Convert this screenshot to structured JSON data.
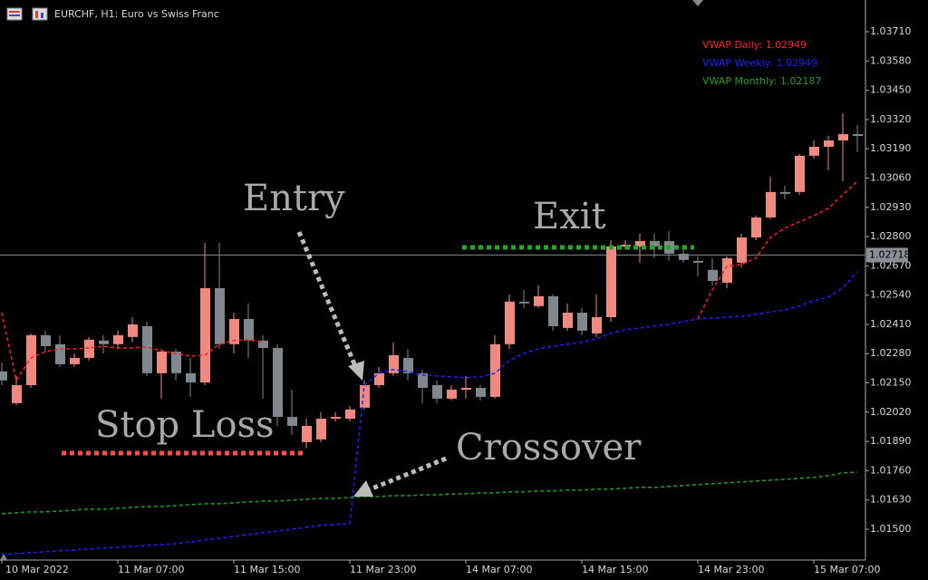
{
  "chart_data": {
    "type": "candlestick",
    "title": "EURCHF, H1:  Euro vs Swiss Franc",
    "annotations": [
      "Entry",
      "Exit",
      "Stop Loss",
      "Crossover"
    ],
    "categories": [
      "10 Mar 2022",
      null,
      null,
      null,
      null,
      null,
      null,
      null,
      "11 Mar 07:00",
      null,
      null,
      null,
      null,
      null,
      null,
      null,
      "11 Mar 15:00",
      null,
      null,
      null,
      null,
      null,
      null,
      null,
      "11 Mar 23:00",
      null,
      null,
      null,
      null,
      null,
      null,
      null,
      "14 Mar 07:00",
      null,
      null,
      null,
      null,
      null,
      null,
      null,
      "14 Mar 15:00",
      null,
      null,
      null,
      null,
      null,
      null,
      null,
      "14 Mar 23:00",
      null,
      null,
      null,
      null,
      null,
      null,
      null,
      "15 Mar 07:00",
      null,
      null,
      null
    ],
    "open": [
      1.02201,
      1.0206,
      1.0214,
      1.02362,
      1.02322,
      1.02233,
      1.02261,
      1.02338,
      1.02322,
      1.02354,
      1.02402,
      1.02193,
      1.02289,
      1.02193,
      1.02152,
      1.02571,
      1.02322,
      1.02434,
      1.02338,
      1.02305,
      1.01999,
      1.01887,
      1.01899,
      1.01991,
      1.01991,
      1.0204,
      1.0214,
      1.02193,
      1.02261,
      1.02193,
      1.0214,
      1.0208,
      1.0212,
      1.02128,
      1.02088,
      1.02322,
      1.02511,
      1.02491,
      1.02535,
      1.02394,
      1.02462,
      1.0237,
      1.02442,
      1.02756,
      1.02756,
      1.0278,
      1.0278,
      1.02724,
      1.02692,
      1.02652,
      1.02595,
      1.02684,
      1.02796,
      1.02885,
      1.02998,
      1.02998,
      1.03159,
      1.03199,
      1.03227,
      1.03255
    ],
    "high": [
      1.02241,
      1.02181,
      1.0237,
      1.02382,
      1.02362,
      1.02281,
      1.02354,
      1.02362,
      1.02382,
      1.02442,
      1.02422,
      1.02301,
      1.02301,
      1.02261,
      1.02772,
      1.02772,
      1.02462,
      1.02503,
      1.02362,
      1.02322,
      1.0212,
      1.01991,
      1.0202,
      1.0202,
      1.02048,
      1.02161,
      1.02221,
      1.0233,
      1.02301,
      1.02209,
      1.02161,
      1.0214,
      1.02181,
      1.0214,
      1.02362,
      1.02543,
      1.02563,
      1.02583,
      1.02543,
      1.02503,
      1.02483,
      1.02543,
      1.02784,
      1.02784,
      1.02813,
      1.02813,
      1.02825,
      1.02764,
      1.02712,
      1.02704,
      1.02712,
      1.02813,
      1.02893,
      1.03066,
      1.03026,
      1.03167,
      1.03227,
      1.03247,
      1.03348,
      1.03296
    ],
    "low": [
      1.0214,
      1.02052,
      1.02128,
      1.02289,
      1.02221,
      1.02221,
      1.02249,
      1.02281,
      1.02301,
      1.0233,
      1.02181,
      1.0208,
      1.02161,
      1.02088,
      1.0214,
      1.02301,
      1.02281,
      1.02261,
      1.0208,
      1.01959,
      1.01919,
      1.01859,
      1.01887,
      1.01979,
      1.01979,
      1.02032,
      1.02128,
      1.02181,
      1.02161,
      1.0206,
      1.0206,
      1.02072,
      1.0208,
      1.02072,
      1.0208,
      1.02301,
      1.02483,
      1.02483,
      1.02382,
      1.02382,
      1.02362,
      1.02354,
      1.02422,
      1.02744,
      1.02684,
      1.02704,
      1.02692,
      1.02684,
      1.02623,
      1.02583,
      1.02571,
      1.02664,
      1.02784,
      1.02877,
      1.02966,
      1.02986,
      1.03147,
      1.03094,
      1.03046,
      1.03175
    ],
    "close": [
      1.02161,
      1.0214,
      1.02362,
      1.02313,
      1.02233,
      1.02261,
      1.02342,
      1.02322,
      1.02362,
      1.0241,
      1.02193,
      1.02289,
      1.02193,
      1.02152,
      1.02571,
      1.02322,
      1.02434,
      1.02338,
      1.02305,
      1.01999,
      1.01959,
      1.01959,
      1.01991,
      1.01999,
      1.02032,
      1.0214,
      1.02193,
      1.02273,
      1.02193,
      1.02128,
      1.0208,
      1.0212,
      1.02128,
      1.02088,
      1.02322,
      1.02511,
      1.02503,
      1.02535,
      1.02402,
      1.02462,
      1.02382,
      1.02442,
      1.02756,
      1.02764,
      1.0278,
      1.02756,
      1.02724,
      1.02696,
      1.02684,
      1.02603,
      1.02704,
      1.02796,
      1.02885,
      1.02998,
      1.0299,
      1.03159,
      1.03199,
      1.03227,
      1.03255,
      1.03247
    ],
    "up_color": "#f08a80",
    "down_color": "#7f878f",
    "series": [
      {
        "name": "VWAP Daily: 1.02949",
        "color": "#ff2020",
        "values": [
          1.02462,
          1.02161,
          1.02261,
          1.02289,
          1.02301,
          1.02301,
          1.02305,
          1.02313,
          1.02305,
          1.02305,
          1.02309,
          1.02293,
          1.02281,
          1.02269,
          1.02273,
          1.02322,
          1.02338,
          1.02342,
          1.0233,
          null,
          null,
          null,
          null,
          null,
          null,
          null,
          null,
          null,
          null,
          null,
          null,
          null,
          null,
          null,
          null,
          null,
          null,
          null,
          null,
          null,
          null,
          null,
          null,
          null,
          null,
          null,
          null,
          null,
          1.02434,
          1.02563,
          1.02668,
          1.02676,
          1.02704,
          1.02796,
          1.02837,
          1.02865,
          1.02893,
          1.02925,
          1.02986,
          1.03046
        ]
      },
      {
        "name": "VWAP Weekly: 1.02949",
        "color": "#2020ff",
        "values": [
          1.01388,
          1.01392,
          1.01396,
          1.014,
          1.01404,
          1.01408,
          1.01412,
          1.01416,
          1.0142,
          1.01424,
          1.01428,
          1.01432,
          1.01436,
          1.01444,
          1.01452,
          1.0146,
          1.01468,
          1.01476,
          1.01484,
          1.01492,
          1.015,
          1.01508,
          1.01517,
          1.01521,
          1.01525,
          1.0214,
          1.02193,
          1.02209,
          1.02201,
          1.02185,
          1.02181,
          1.02177,
          1.02173,
          1.02177,
          1.02193,
          1.02249,
          1.02281,
          1.02301,
          1.02313,
          1.02322,
          1.0233,
          1.02346,
          1.0237,
          1.02386,
          1.02394,
          1.02402,
          1.0241,
          1.02422,
          1.02434,
          1.02438,
          1.02442,
          1.02446,
          1.02454,
          1.02466,
          1.02474,
          1.02491,
          1.02515,
          1.02531,
          1.02571,
          1.02644
        ]
      },
      {
        "name": "VWAP Monthly: 1.02187",
        "color": "#22a022",
        "values": [
          1.01569,
          1.01573,
          1.01577,
          1.01577,
          1.01581,
          1.01585,
          1.01589,
          1.01589,
          1.01593,
          1.01597,
          1.01601,
          1.01601,
          1.01605,
          1.01609,
          1.01613,
          1.01613,
          1.01617,
          1.01621,
          1.01625,
          1.01625,
          1.01629,
          1.01633,
          1.01637,
          1.01637,
          1.01641,
          1.01645,
          1.01645,
          1.01649,
          1.01649,
          1.01653,
          1.01653,
          1.01657,
          1.01657,
          1.01661,
          1.01661,
          1.01666,
          1.01666,
          1.0167,
          1.0167,
          1.01674,
          1.01674,
          1.01678,
          1.01678,
          1.01682,
          1.01686,
          1.01686,
          1.0169,
          1.01694,
          1.01698,
          1.01702,
          1.01706,
          1.0171,
          1.01714,
          1.01718,
          1.01722,
          1.01726,
          1.0173,
          1.01738,
          1.0175,
          1.01754
        ]
      }
    ],
    "current_price": 1.02718,
    "ylim": [
      1.01363,
      1.03851
    ],
    "yticks": [
      {
        "value": 1.0371,
        "label": "1.03710"
      },
      {
        "value": 1.0358,
        "label": "1.03580"
      },
      {
        "value": 1.0345,
        "label": "1.03450"
      },
      {
        "value": 1.0332,
        "label": "1.03320"
      },
      {
        "value": 1.0319,
        "label": "1.03190"
      },
      {
        "value": 1.0306,
        "label": "1.03060"
      },
      {
        "value": 1.0293,
        "label": "1.02930"
      },
      {
        "value": 1.028,
        "label": "1.02800"
      },
      {
        "value": 1.0267,
        "label": "1.02670"
      },
      {
        "value": 1.0254,
        "label": "1.02540"
      },
      {
        "value": 1.0241,
        "label": "1.02410"
      },
      {
        "value": 1.0228,
        "label": "1.02280"
      },
      {
        "value": 1.0215,
        "label": "1.02150"
      },
      {
        "value": 1.0202,
        "label": "1.02020"
      },
      {
        "value": 1.0189,
        "label": "1.01890"
      },
      {
        "value": 1.0176,
        "label": "1.01760"
      },
      {
        "value": 1.0163,
        "label": "1.01630"
      },
      {
        "value": 1.015,
        "label": "1.01500"
      }
    ]
  }
}
